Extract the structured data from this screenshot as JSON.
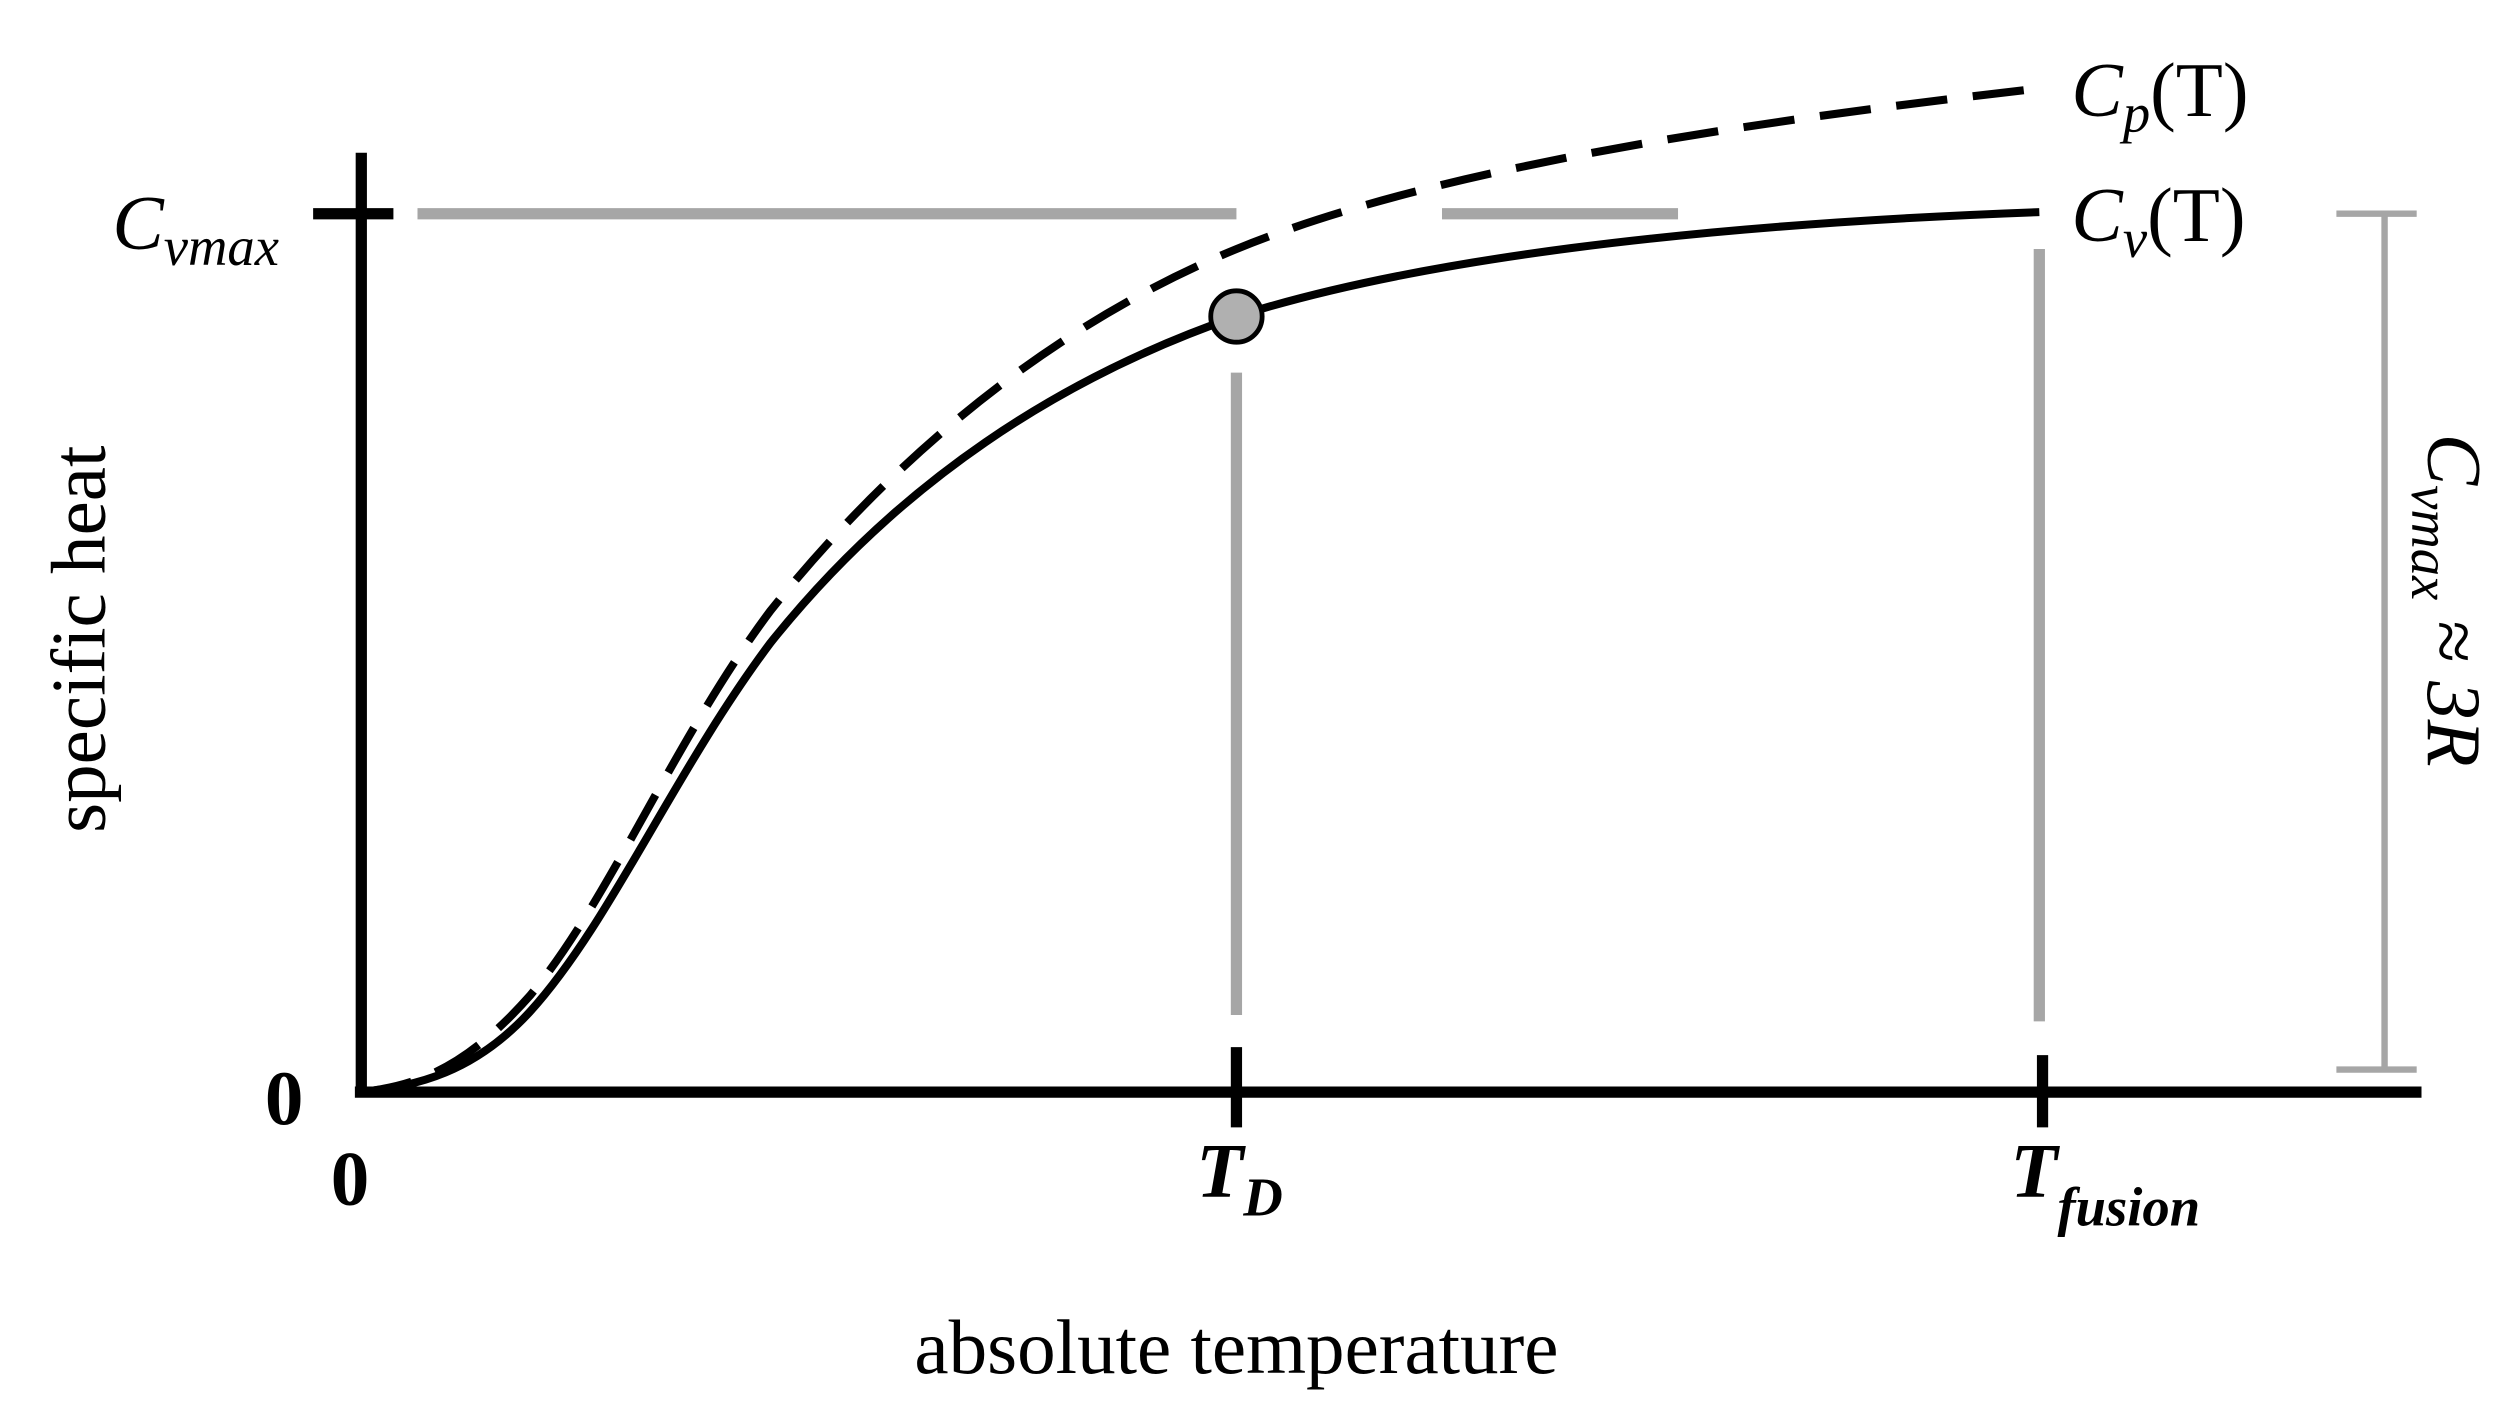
{
  "axes": {
    "y_label": "specific heat",
    "x_label": "absolute temperature",
    "y_zero": "0",
    "x_zero": "0"
  },
  "y_tick": {
    "symbol": "C",
    "subscript": "vmax"
  },
  "x_ticks": [
    {
      "symbol": "T",
      "subscript": "D"
    },
    {
      "symbol": "T",
      "subscript": "fusion"
    }
  ],
  "curves": [
    {
      "symbol": "C",
      "subscript": "p",
      "argument": "(T)"
    },
    {
      "symbol": "C",
      "subscript": "v",
      "argument": "(T)"
    }
  ],
  "bracket_label": {
    "symbol": "C",
    "subscript": "vmax",
    "relation": "≈ 3R"
  }
}
